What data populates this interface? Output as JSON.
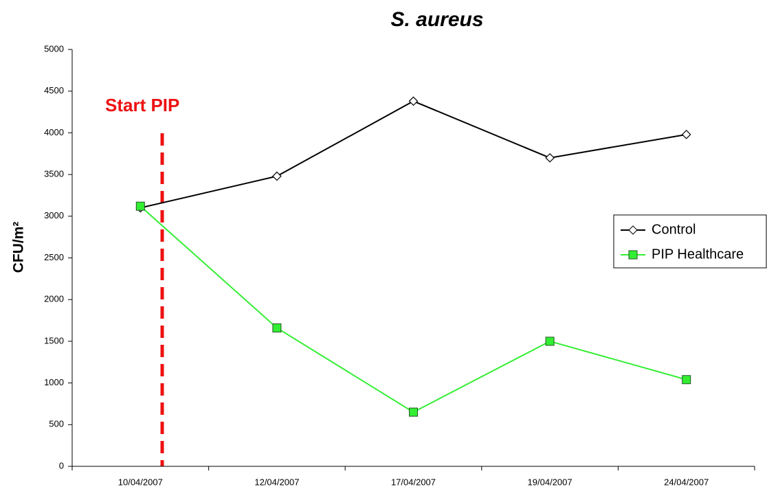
{
  "chart_data": {
    "type": "line",
    "title": "S. aureus",
    "y_label": "CFU/m²",
    "annotation": "Start PIP",
    "categories": [
      "10/04/2007",
      "12/04/2007",
      "17/04/2007",
      "19/04/2007",
      "24/04/2007"
    ],
    "series": [
      {
        "name": "Control",
        "color": "#000000",
        "values": [
          3100,
          3480,
          4380,
          3700,
          3980
        ]
      },
      {
        "name": "PIP Healthcare",
        "color": "#33ee33",
        "values": [
          3120,
          1660,
          650,
          1500,
          1040
        ]
      }
    ],
    "ylim": [
      0,
      5000
    ],
    "yticks": [
      0,
      500,
      1000,
      1500,
      2000,
      2500,
      3000,
      3500,
      4000,
      4500,
      5000
    ],
    "grid": false,
    "legend": "right"
  }
}
